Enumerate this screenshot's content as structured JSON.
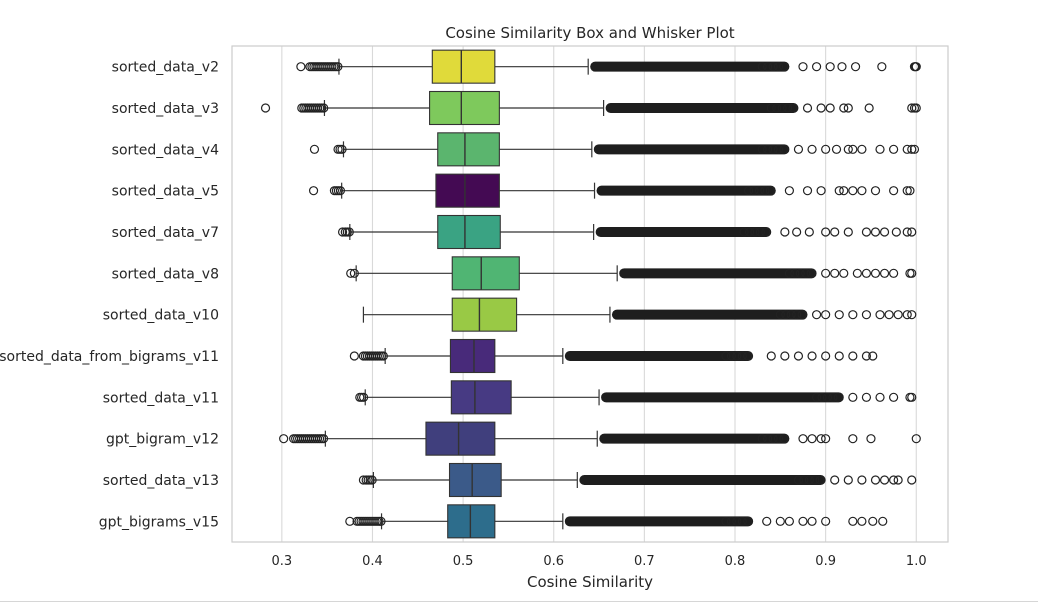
{
  "chart_data": {
    "type": "box",
    "orientation": "horizontal",
    "title": "Cosine Similarity Box and Whisker Plot",
    "xlabel": "Cosine Similarity",
    "ylabel": "",
    "xlim": [
      0.245,
      1.035
    ],
    "xticks": [
      0.3,
      0.4,
      0.5,
      0.6,
      0.7,
      0.8,
      0.9,
      1.0
    ],
    "xtick_labels": [
      "0.3",
      "0.4",
      "0.5",
      "0.6",
      "0.7",
      "0.8",
      "0.9",
      "1.0"
    ],
    "grid": "vertical",
    "categories": [
      "sorted_data_v2",
      "sorted_data_v3",
      "sorted_data_v4",
      "sorted_data_v5",
      "sorted_data_v7",
      "sorted_data_v8",
      "sorted_data_v10",
      "sorted_data_from_bigrams_v11",
      "sorted_data_v11",
      "gpt_bigram_v12",
      "sorted_data_v13",
      "gpt_bigrams_v15"
    ],
    "boxes": [
      {
        "name": "sorted_data_v2",
        "q1": 0.466,
        "median": 0.498,
        "q3": 0.535,
        "whisker_low": 0.363,
        "whisker_high": 0.638,
        "color": "#e0da3a",
        "outliers_low": {
          "min": 0.321,
          "dense_from": 0.331
        },
        "outliers_high": {
          "dense_to": 0.86,
          "sparse": [
            0.875,
            0.89,
            0.905,
            0.918,
            0.933,
            0.962,
            0.998,
            0.999,
            1.0
          ]
        }
      },
      {
        "name": "sorted_data_v3",
        "q1": 0.463,
        "median": 0.498,
        "q3": 0.54,
        "whisker_low": 0.347,
        "whisker_high": 0.655,
        "color": "#7ec95c",
        "outliers_low": {
          "min": 0.282,
          "dense_from": 0.322
        },
        "outliers_high": {
          "dense_to": 0.87,
          "sparse": [
            0.88,
            0.895,
            0.905,
            0.92,
            0.925,
            0.948,
            0.995,
            0.998,
            1.0
          ]
        }
      },
      {
        "name": "sorted_data_v4",
        "q1": 0.472,
        "median": 0.502,
        "q3": 0.54,
        "whisker_low": 0.368,
        "whisker_high": 0.642,
        "color": "#5bb56e",
        "outliers_low": {
          "min": 0.336,
          "dense_from": 0.362
        },
        "outliers_high": {
          "dense_to": 0.86,
          "sparse": [
            0.87,
            0.885,
            0.9,
            0.912,
            0.925,
            0.93,
            0.94,
            0.96,
            0.975,
            0.99,
            0.995,
            0.998
          ]
        }
      },
      {
        "name": "sorted_data_v5",
        "q1": 0.47,
        "median": 0.502,
        "q3": 0.54,
        "whisker_low": 0.366,
        "whisker_high": 0.645,
        "color": "#440a53",
        "outliers_low": {
          "min": 0.335,
          "dense_from": 0.358
        },
        "outliers_high": {
          "dense_to": 0.845,
          "sparse": [
            0.86,
            0.88,
            0.895,
            0.915,
            0.92,
            0.93,
            0.94,
            0.955,
            0.975,
            0.99,
            0.993
          ]
        }
      },
      {
        "name": "sorted_data_v7",
        "q1": 0.472,
        "median": 0.502,
        "q3": 0.541,
        "whisker_low": 0.375,
        "whisker_high": 0.644,
        "color": "#3aa383",
        "outliers_low": {
          "min": 0.367,
          "dense_from": 0.37
        },
        "outliers_high": {
          "dense_to": 0.84,
          "sparse": [
            0.855,
            0.868,
            0.882,
            0.9,
            0.91,
            0.925,
            0.945,
            0.955,
            0.965,
            0.978,
            0.99,
            0.995
          ]
        }
      },
      {
        "name": "sorted_data_v8",
        "q1": 0.488,
        "median": 0.52,
        "q3": 0.562,
        "whisker_low": 0.382,
        "whisker_high": 0.67,
        "color": "#50b573",
        "outliers_low": {
          "min": 0.376,
          "dense_from": 0.38
        },
        "outliers_high": {
          "dense_to": 0.89,
          "sparse": [
            0.9,
            0.91,
            0.92,
            0.935,
            0.945,
            0.955,
            0.965,
            0.975,
            0.993,
            0.995
          ]
        }
      },
      {
        "name": "sorted_data_v10",
        "q1": 0.488,
        "median": 0.518,
        "q3": 0.559,
        "whisker_low": 0.39,
        "whisker_high": 0.662,
        "color": "#99c945",
        "outliers_low": null,
        "outliers_high": {
          "dense_to": 0.88,
          "sparse": [
            0.89,
            0.9,
            0.915,
            0.93,
            0.945,
            0.96,
            0.97,
            0.98,
            0.99,
            0.995
          ]
        }
      },
      {
        "name": "sorted_data_from_bigrams_v11",
        "q1": 0.486,
        "median": 0.512,
        "q3": 0.535,
        "whisker_low": 0.414,
        "whisker_high": 0.61,
        "color": "#482a7a",
        "outliers_low": {
          "min": 0.38,
          "dense_from": 0.39
        },
        "outliers_high": {
          "dense_to": 0.82,
          "sparse": [
            0.84,
            0.855,
            0.87,
            0.885,
            0.9,
            0.915,
            0.93,
            0.945,
            0.952
          ]
        }
      },
      {
        "name": "sorted_data_v11",
        "q1": 0.487,
        "median": 0.513,
        "q3": 0.553,
        "whisker_low": 0.392,
        "whisker_high": 0.65,
        "color": "#473a83",
        "outliers_low": {
          "min": 0.386,
          "dense_from": 0.388
        },
        "outliers_high": {
          "dense_to": 0.92,
          "sparse": [
            0.93,
            0.945,
            0.96,
            0.975,
            0.993,
            0.995
          ]
        }
      },
      {
        "name": "gpt_bigram_v12",
        "q1": 0.459,
        "median": 0.495,
        "q3": 0.535,
        "whisker_low": 0.348,
        "whisker_high": 0.648,
        "color": "#403f7d",
        "outliers_low": {
          "min": 0.302,
          "dense_from": 0.313
        },
        "outliers_high": {
          "dense_to": 0.86,
          "sparse": [
            0.875,
            0.885,
            0.895,
            0.9,
            0.93,
            0.95,
            1.0
          ]
        }
      },
      {
        "name": "sorted_data_v13",
        "q1": 0.485,
        "median": 0.51,
        "q3": 0.542,
        "whisker_low": 0.401,
        "whisker_high": 0.626,
        "color": "#3b5a89",
        "outliers_low": {
          "min": 0.39,
          "dense_from": 0.393
        },
        "outliers_high": {
          "dense_to": 0.9,
          "sparse": [
            0.91,
            0.925,
            0.94,
            0.955,
            0.965,
            0.975,
            0.98,
            0.995
          ]
        }
      },
      {
        "name": "gpt_bigrams_v15",
        "q1": 0.483,
        "median": 0.508,
        "q3": 0.535,
        "whisker_low": 0.41,
        "whisker_high": 0.61,
        "color": "#2d6d8c",
        "outliers_low": {
          "min": 0.375,
          "dense_from": 0.383
        },
        "outliers_high": {
          "dense_to": 0.82,
          "sparse": [
            0.835,
            0.85,
            0.86,
            0.875,
            0.885,
            0.9,
            0.93,
            0.94,
            0.952,
            0.963
          ]
        }
      }
    ]
  }
}
